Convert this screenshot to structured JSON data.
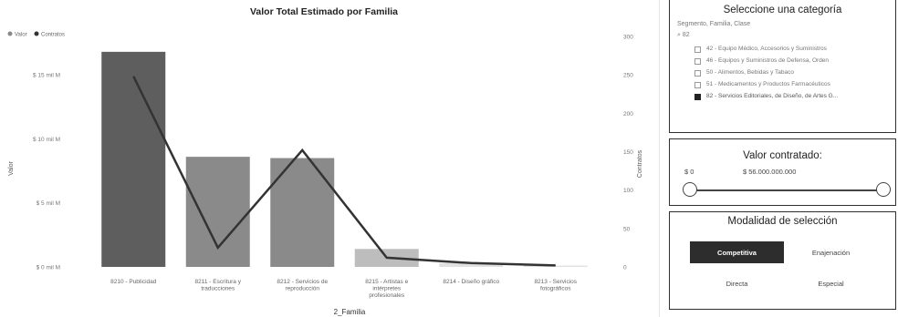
{
  "chart": {
    "title": "Valor Total Estimado por Familia",
    "legend": [
      {
        "label": "Valor",
        "color": "#8a8a8a"
      },
      {
        "label": "Contratos",
        "color": "#333333"
      }
    ],
    "ylabel_left": "Valor",
    "ylabel_right": "Contratos",
    "xlabel": "2_Familia",
    "left_ticks": [
      "$ 0 mil M",
      "$ 5 mil M",
      "$ 10 mil M",
      "$ 15 mil M"
    ],
    "right_ticks": [
      "0",
      "50",
      "100",
      "150",
      "200",
      "250",
      "300"
    ]
  },
  "chart_data": {
    "type": "bar",
    "title": "Valor Total Estimado por Familia",
    "xlabel": "2_Familia",
    "ylabel": "Valor",
    "y2label": "Contratos",
    "categories": [
      "8210 - Publicidad",
      "8211 - Escritura y traducciones",
      "8212 - Servicios de reproducción",
      "8215 - Artistas e intérpretes profesionales",
      "8214 - Diseño gráfico",
      "8213 - Servicios fotográficos"
    ],
    "series": [
      {
        "name": "Valor",
        "type": "bar",
        "axis": "left",
        "values": [
          16.8,
          8.6,
          8.5,
          1.4,
          0.3,
          0.1
        ],
        "colors": [
          "#5e5e5e",
          "#8a8a8a",
          "#8a8a8a",
          "#bdbdbd",
          "#e0e0e0",
          "#e0e0e0"
        ]
      },
      {
        "name": "Contratos",
        "type": "line",
        "axis": "right",
        "values": [
          248,
          25,
          152,
          12,
          5,
          2
        ],
        "color": "#333333"
      }
    ],
    "ylim": [
      0,
      18
    ],
    "y2lim": [
      0,
      300
    ],
    "grid": false,
    "legend_position": "top-left"
  },
  "category_panel": {
    "title": "Seleccione una categoría",
    "breadcrumb": "Segmento, Familia, Clase",
    "root": "82",
    "items": [
      {
        "label": "42 - Equipo Médico, Accesorios y Suministros",
        "checked": false
      },
      {
        "label": "46 - Equipos y Suministros de Defensa, Orden",
        "checked": false
      },
      {
        "label": "50 - Alimentos, Bebidas y Tabaco",
        "checked": false
      },
      {
        "label": "51 - Medicamentos y Productos Farmacéuticos",
        "checked": false
      },
      {
        "label": "82 - Servicios Editoriales, de Diseño, de Artes G...",
        "checked": true
      }
    ]
  },
  "value_panel": {
    "title": "Valor contratado:",
    "min": "$ 0",
    "max": "$ 56.000.000.000"
  },
  "modality_panel": {
    "title": "Modalidad de selección",
    "options": [
      {
        "label": "Competitiva",
        "active": true
      },
      {
        "label": "Enajenación",
        "active": false
      },
      {
        "label": "Directa",
        "active": false
      },
      {
        "label": "Especial",
        "active": false
      }
    ]
  }
}
